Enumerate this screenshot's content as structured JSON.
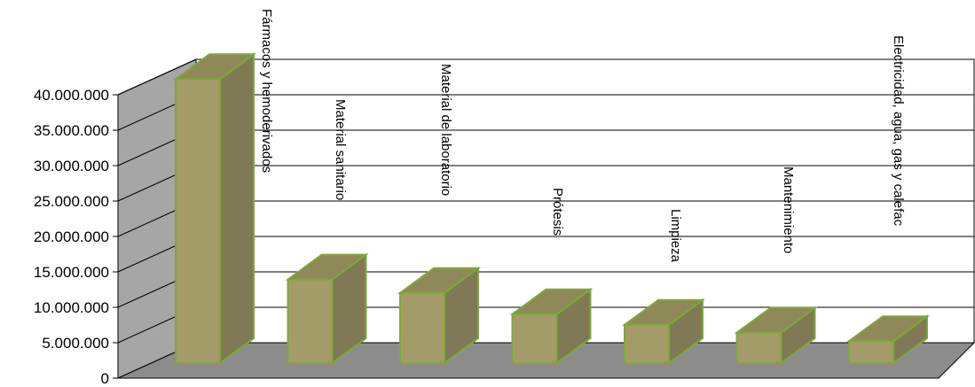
{
  "chart_data": {
    "type": "bar",
    "title": "",
    "xlabel": "",
    "ylabel": "",
    "ylim": [
      0,
      40000000
    ],
    "yticks": [
      0,
      5000000,
      10000000,
      15000000,
      20000000,
      25000000,
      30000000,
      35000000,
      40000000
    ],
    "ytick_labels": [
      "0",
      "5.000.000",
      "10.000.000",
      "15.000.000",
      "20.000.000",
      "25.000.000",
      "30.000.000",
      "35.000.000",
      "40.000.000"
    ],
    "categories": [
      "Fármacos y hemoderivados",
      "Material sanitario",
      "Material de laboratorio",
      "Prótesis",
      "Limpieza",
      "Mantenimiento",
      "Electricidad, agua, gas y calefac"
    ],
    "values": [
      40100000,
      11800000,
      9900000,
      6900000,
      5400000,
      4300000,
      3100000
    ],
    "grid": true,
    "bar_color": "#a49c68",
    "bar_edge_color": "#7ea83a"
  }
}
